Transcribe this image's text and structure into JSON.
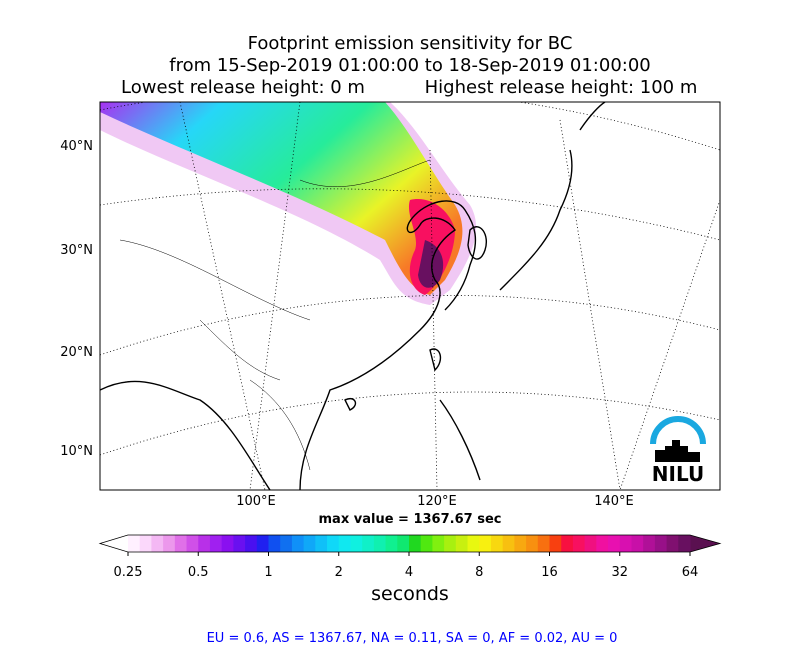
{
  "header": {
    "title": "Footprint emission sensitivity for BC",
    "period": "from 15-Sep-2019 01:00:00 to 18-Sep-2019 01:00:00",
    "lowest_release": "Lowest release height: 0 m",
    "highest_release": "Highest release height: 100 m"
  },
  "map": {
    "lat_labels": [
      "40°N",
      "30°N",
      "20°N",
      "10°N"
    ],
    "lon_labels": [
      "100°E",
      "120°E",
      "140°E"
    ],
    "max_value": "max value = 1367.67 sec",
    "logo": "NILU"
  },
  "colorbar": {
    "label": "seconds",
    "scale": "log",
    "lim": [
      0.25,
      64
    ],
    "ticks": [
      0.25,
      0.5,
      1,
      2,
      4,
      8,
      16,
      32,
      64
    ],
    "colors": [
      "#fff0ff",
      "#fbd8fb",
      "#f4b8f4",
      "#ec98ec",
      "#e070e8",
      "#d050e8",
      "#b830e8",
      "#a020f0",
      "#8a10f0",
      "#6a10f0",
      "#4a10f0",
      "#2020f0",
      "#1050f0",
      "#1070f0",
      "#1090f8",
      "#10a8f8",
      "#10c0f8",
      "#10d8f8",
      "#10e8f0",
      "#10f0e0",
      "#10f0c8",
      "#10f0b0",
      "#10f090",
      "#10e870",
      "#20d820",
      "#50e810",
      "#80f010",
      "#a8f010",
      "#c8f010",
      "#e8f810",
      "#f8f010",
      "#f8d810",
      "#f8c010",
      "#f8a810",
      "#f89010",
      "#f87010",
      "#f84010",
      "#f81040",
      "#f81060",
      "#f01080",
      "#f010a0",
      "#e810b0",
      "#d810b0",
      "#c810a8",
      "#b01098",
      "#981088",
      "#801070",
      "#681060"
    ],
    "extend_low": "#ffffff",
    "extend_high": "#5a1050"
  },
  "footer": "EU = 0.6,  AS = 1367.67,  NA = 0.11,  SA = 0,  AF = 0.02,  AU = 0"
}
